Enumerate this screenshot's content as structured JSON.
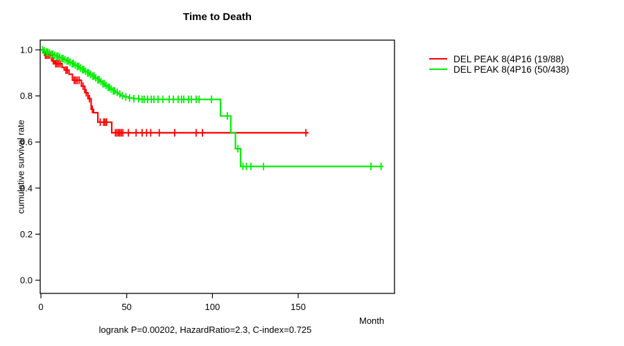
{
  "chart_data": {
    "type": "line",
    "subtype": "kaplan-meier-step-curves",
    "title": "Time to Death",
    "xlabel": "Month",
    "ylabel": "cumulative survival rate",
    "annotation": "logrank P=0.00202, HazardRatio=2.3, C-index=0.725",
    "x_ticks": [
      0,
      50,
      100,
      150
    ],
    "y_ticks": [
      0.0,
      0.2,
      0.4,
      0.6,
      0.8,
      1.0
    ],
    "xlim": [
      0,
      206
    ],
    "ylim": [
      0.0,
      1.04
    ],
    "grid": false,
    "legend_position": "right-outside",
    "series": [
      {
        "name": "DEL PEAK  8(4P16 (19/88)",
        "color": "#ff0000",
        "steps": [
          [
            0,
            1.0
          ],
          [
            1.2,
            0.988
          ],
          [
            2.1,
            0.977
          ],
          [
            6.3,
            0.952
          ],
          [
            8.0,
            0.94
          ],
          [
            12.3,
            0.924
          ],
          [
            13.6,
            0.912
          ],
          [
            16.4,
            0.894
          ],
          [
            18.4,
            0.868
          ],
          [
            23.6,
            0.842
          ],
          [
            25.6,
            0.814
          ],
          [
            27.4,
            0.788
          ],
          [
            29.3,
            0.742
          ],
          [
            30.6,
            0.727
          ],
          [
            33.2,
            0.686
          ],
          [
            41.3,
            0.64
          ]
        ],
        "end_month": 156,
        "censors": [
          2.6,
          3.4,
          4.3,
          5.2,
          7.2,
          8.6,
          9.4,
          10.3,
          11.2,
          14.6,
          15.4,
          19.4,
          20.3,
          21.2,
          22.3,
          24.6,
          26.4,
          28.3,
          30.0,
          34.6,
          36.6,
          37.4,
          38.3,
          43.4,
          44.3,
          45.2,
          46.0,
          46.9,
          47.8,
          51.0,
          55.5,
          59.0,
          61.6,
          64.0,
          69.0,
          78.0,
          90.5,
          94.2,
          154.5
        ]
      },
      {
        "name": "DEL PEAK  8(4P16 (50/438)",
        "color": "#00ee00",
        "steps": [
          [
            0,
            1.0
          ],
          [
            1.5,
            0.995
          ],
          [
            3,
            0.99
          ],
          [
            4.5,
            0.986
          ],
          [
            6,
            0.981
          ],
          [
            7.5,
            0.976
          ],
          [
            9,
            0.972
          ],
          [
            10.5,
            0.967
          ],
          [
            12,
            0.962
          ],
          [
            13.5,
            0.957
          ],
          [
            15,
            0.952
          ],
          [
            16.5,
            0.946
          ],
          [
            18,
            0.94
          ],
          [
            19.5,
            0.934
          ],
          [
            21,
            0.928
          ],
          [
            22.5,
            0.921
          ],
          [
            24,
            0.914
          ],
          [
            25.5,
            0.907
          ],
          [
            27,
            0.9
          ],
          [
            28.5,
            0.893
          ],
          [
            30,
            0.886
          ],
          [
            31.5,
            0.878
          ],
          [
            33,
            0.87
          ],
          [
            34.5,
            0.862
          ],
          [
            36,
            0.853
          ],
          [
            37.5,
            0.845
          ],
          [
            39,
            0.837
          ],
          [
            40.5,
            0.83
          ],
          [
            42,
            0.822
          ],
          [
            43.5,
            0.815
          ],
          [
            45,
            0.808
          ],
          [
            46.5,
            0.801
          ],
          [
            48.5,
            0.796
          ],
          [
            51,
            0.791
          ],
          [
            54,
            0.788
          ],
          [
            57.5,
            0.785
          ],
          [
            104.7,
            0.713
          ],
          [
            110.7,
            0.641
          ],
          [
            113.4,
            0.571
          ],
          [
            116.4,
            0.494
          ]
        ],
        "end_month": 199.6,
        "censors": [
          1,
          2,
          3.2,
          4,
          5,
          6.2,
          7,
          8,
          9.2,
          10,
          11,
          12.2,
          13,
          14,
          15.2,
          16,
          17,
          18.2,
          19,
          20,
          21.2,
          22,
          23,
          24.2,
          25,
          26,
          27.2,
          28,
          29,
          30.2,
          31,
          32,
          33.2,
          34,
          35,
          36.2,
          37,
          38,
          39.2,
          40,
          41,
          42.2,
          43,
          44.5,
          46,
          47.5,
          49.5,
          51.7,
          54.2,
          57,
          59,
          60.2,
          62.2,
          64.3,
          65.9,
          68.3,
          71.1,
          74.8,
          77.2,
          80,
          82,
          83.3,
          86.1,
          87.7,
          90.5,
          92.2,
          99.4,
          108.7,
          114.8,
          117.8,
          119.8,
          122.4,
          129.8,
          192.4,
          198.3
        ]
      }
    ]
  },
  "colors": {
    "axis": "#000000",
    "background": "#ffffff",
    "series_red": "#ff0000",
    "series_green": "#00ee00"
  }
}
